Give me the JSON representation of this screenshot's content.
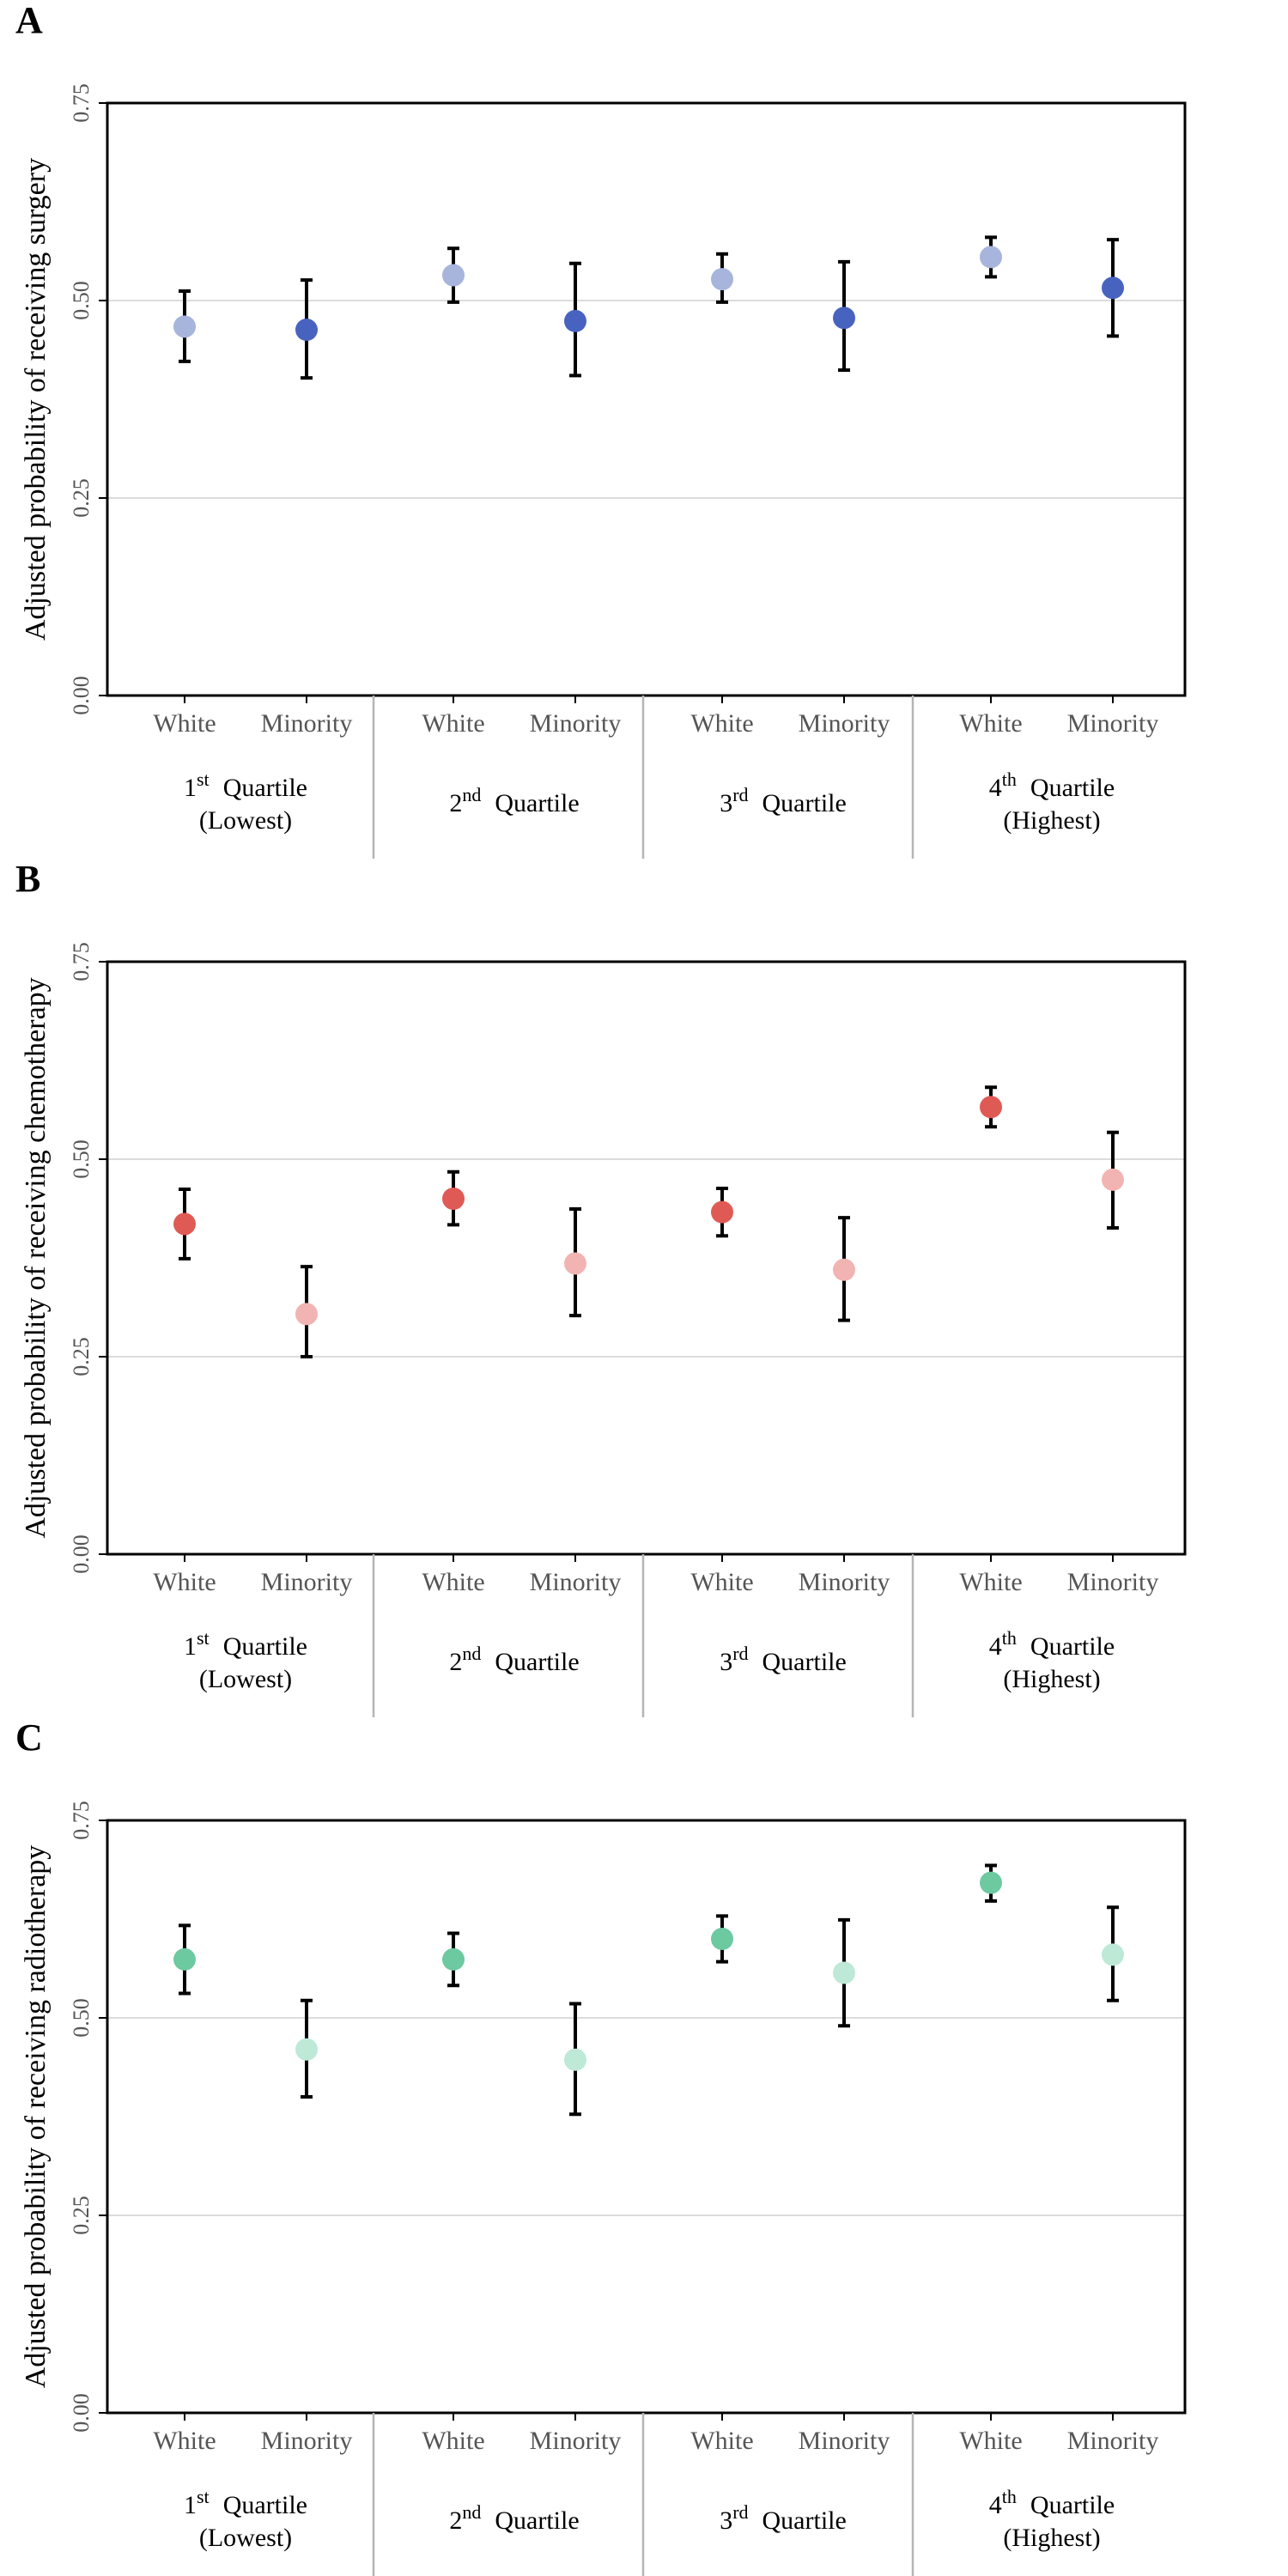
{
  "colors": {
    "surgery_white": "#a7b5dc",
    "surgery_minority": "#4863bf",
    "chemo_white": "#e05a55",
    "chemo_minority": "#f2b4b2",
    "radio_white": "#6dc9a0",
    "radio_minority": "#bde9d6"
  },
  "chart_data": [
    {
      "type": "scatter",
      "panel": "A",
      "ylabel": "Adjusted probability of receiving surgery",
      "ylim": [
        0,
        0.75
      ],
      "yticks": [
        "0.00",
        "0.25",
        "0.50",
        "0.75"
      ],
      "grid": true,
      "groups": [
        {
          "label_pre": "1",
          "label_sup": "st",
          "label_post": "Quartile",
          "label_line2": "(Lowest)"
        },
        {
          "label_pre": "2",
          "label_sup": "nd",
          "label_post": "Quartile",
          "label_line2": ""
        },
        {
          "label_pre": "3",
          "label_sup": "rd",
          "label_post": "Quartile",
          "label_line2": ""
        },
        {
          "label_pre": "4",
          "label_sup": "th",
          "label_post": "Quartile",
          "label_line2": "(Highest)"
        }
      ],
      "series": [
        {
          "name": "White",
          "color_key": "surgery_white",
          "values": [
            0.467,
            0.532,
            0.527,
            0.555
          ],
          "lower": [
            0.423,
            0.498,
            0.498,
            0.53
          ],
          "upper": [
            0.512,
            0.566,
            0.559,
            0.58
          ]
        },
        {
          "name": "Minority",
          "color_key": "surgery_minority",
          "values": [
            0.463,
            0.474,
            0.478,
            0.516
          ],
          "lower": [
            0.402,
            0.405,
            0.412,
            0.455
          ],
          "upper": [
            0.526,
            0.547,
            0.549,
            0.577
          ]
        }
      ]
    },
    {
      "type": "scatter",
      "panel": "B",
      "ylabel": "Adjusted probability of receiving chemotherapy",
      "ylim": [
        0,
        0.75
      ],
      "yticks": [
        "0.00",
        "0.25",
        "0.50",
        "0.75"
      ],
      "grid": true,
      "groups": [
        {
          "label_pre": "1",
          "label_sup": "st",
          "label_post": "Quartile",
          "label_line2": "(Lowest)"
        },
        {
          "label_pre": "2",
          "label_sup": "nd",
          "label_post": "Quartile",
          "label_line2": ""
        },
        {
          "label_pre": "3",
          "label_sup": "rd",
          "label_post": "Quartile",
          "label_line2": ""
        },
        {
          "label_pre": "4",
          "label_sup": "th",
          "label_post": "Quartile",
          "label_line2": "(Highest)"
        }
      ],
      "series": [
        {
          "name": "White",
          "color_key": "chemo_white",
          "values": [
            0.418,
            0.45,
            0.433,
            0.566
          ],
          "lower": [
            0.374,
            0.417,
            0.403,
            0.541
          ],
          "upper": [
            0.462,
            0.484,
            0.463,
            0.591
          ]
        },
        {
          "name": "Minority",
          "color_key": "chemo_minority",
          "values": [
            0.304,
            0.368,
            0.36,
            0.474
          ],
          "lower": [
            0.25,
            0.302,
            0.296,
            0.413
          ],
          "upper": [
            0.364,
            0.437,
            0.426,
            0.534
          ]
        }
      ]
    },
    {
      "type": "scatter",
      "panel": "C",
      "ylabel": "Adjusted probability of receiving radiotherapy",
      "ylim": [
        0,
        0.75
      ],
      "yticks": [
        "0.00",
        "0.25",
        "0.50",
        "0.75"
      ],
      "grid": true,
      "groups": [
        {
          "label_pre": "1",
          "label_sup": "st",
          "label_post": "Quartile",
          "label_line2": "(Lowest)"
        },
        {
          "label_pre": "2",
          "label_sup": "nd",
          "label_post": "Quartile",
          "label_line2": ""
        },
        {
          "label_pre": "3",
          "label_sup": "rd",
          "label_post": "Quartile",
          "label_line2": ""
        },
        {
          "label_pre": "4",
          "label_sup": "th",
          "label_post": "Quartile",
          "label_line2": "(Highest)"
        }
      ],
      "series": [
        {
          "name": "White",
          "color_key": "radio_white",
          "values": [
            0.574,
            0.574,
            0.6,
            0.671
          ],
          "lower": [
            0.531,
            0.541,
            0.571,
            0.648
          ],
          "upper": [
            0.617,
            0.607,
            0.629,
            0.693
          ]
        },
        {
          "name": "Minority",
          "color_key": "radio_minority",
          "values": [
            0.46,
            0.447,
            0.557,
            0.58
          ],
          "lower": [
            0.4,
            0.378,
            0.49,
            0.522
          ],
          "upper": [
            0.522,
            0.518,
            0.624,
            0.64
          ]
        }
      ]
    }
  ]
}
